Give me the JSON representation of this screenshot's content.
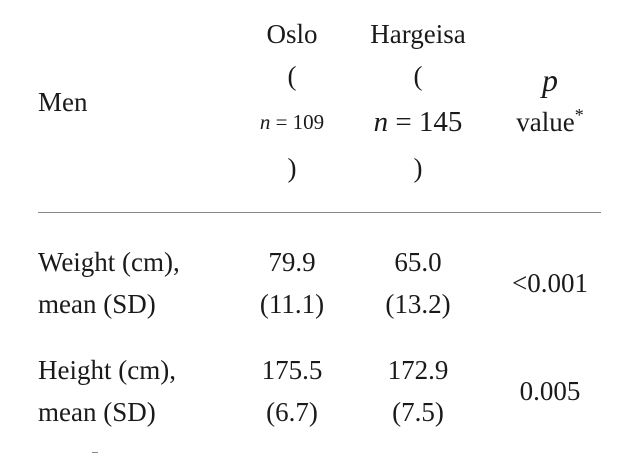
{
  "table": {
    "header": {
      "row_label": "Men",
      "col1": {
        "name": "Oslo",
        "open": "(",
        "n_symbol": "n",
        "n_eq": " = 109",
        "close": ")"
      },
      "col2": {
        "name": "Hargeisa",
        "open": "(",
        "n_symbol": "n",
        "n_eq": " = 145",
        "close": ")"
      },
      "col3": {
        "p_symbol": "p",
        "label": "value",
        "mark": "*"
      }
    },
    "rows": [
      {
        "label_line1": "Weight (cm),",
        "label_line2": "mean (SD)",
        "oslo_mean": "79.9",
        "oslo_sd": "(11.1)",
        "hargeisa_mean": "65.0",
        "hargeisa_sd": "(13.2)",
        "p": "<0.001"
      },
      {
        "label_line1": "Height (cm),",
        "label_line2": "mean (SD)",
        "oslo_mean": "175.5",
        "oslo_sd": "(6.7)",
        "hargeisa_mean": "172.9",
        "hargeisa_sd": "(7.5)",
        "p": "0.005"
      }
    ]
  }
}
